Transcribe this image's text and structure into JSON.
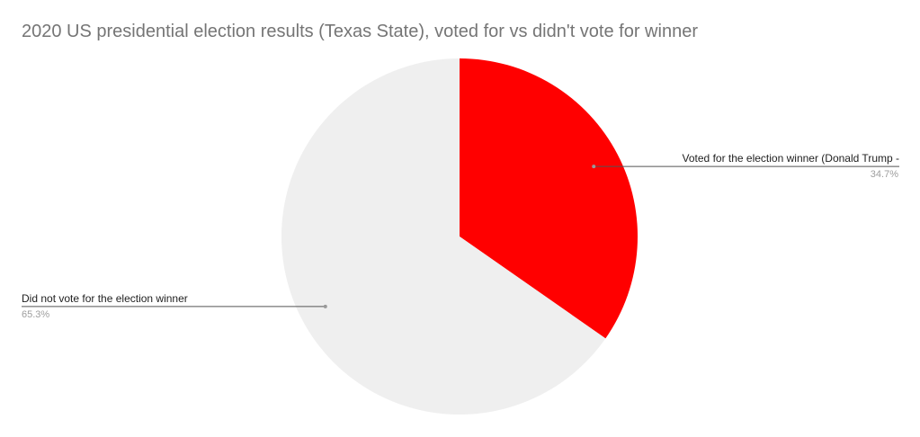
{
  "chart_data": {
    "type": "pie",
    "title": "2020 US presidential election results (Texas State), voted for vs didn't vote for winner",
    "slices": [
      {
        "label": "Voted for the election winner (Donald Trump -",
        "value_label": "34.7%",
        "value": 34.7,
        "color": "#ff0000"
      },
      {
        "label": "Did not vote for the election winner",
        "value_label": "65.3%",
        "value": 65.3,
        "color": "#efefef"
      }
    ],
    "start_angle": "12 o'clock",
    "direction": "clockwise",
    "legend": "labels with leader lines"
  }
}
